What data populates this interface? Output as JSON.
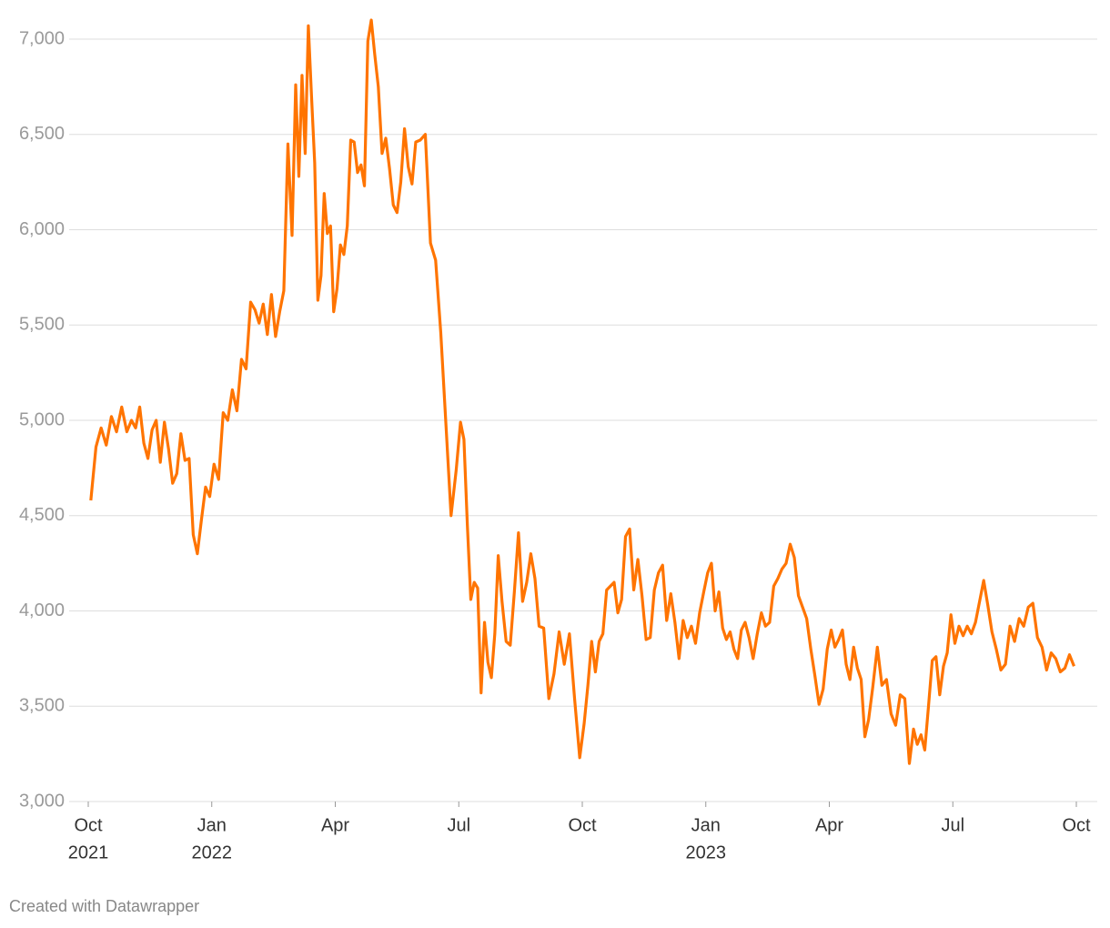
{
  "chart_data": {
    "type": "line",
    "footer": "Created with Datawrapper",
    "color": "#ff7400",
    "grid": true,
    "x": [
      "2021-10",
      "2021-11",
      "2021-12",
      "2022-01",
      "2022-02",
      "2022-03",
      "2022-04",
      "2022-05",
      "2022-06",
      "2022-07",
      "2022-08",
      "2022-09",
      "2022-10",
      "2022-11",
      "2022-12",
      "2023-01",
      "2023-02",
      "2023-03",
      "2023-04",
      "2023-05",
      "2023-06",
      "2023-07",
      "2023-08",
      "2023-09"
    ],
    "values": [
      [
        4580,
        4860,
        4960,
        4870,
        5020,
        4940,
        5070,
        4940
      ],
      [
        5000,
        4960,
        5070,
        4880,
        4800,
        4950,
        5000,
        4780,
        4990,
        4850
      ],
      [
        4670,
        4720,
        4930,
        4790,
        4800,
        4400,
        4300,
        4480,
        4650,
        4600
      ],
      [
        4770,
        4690,
        5040,
        5000,
        5160,
        5050,
        5320,
        5270,
        5620
      ],
      [
        5580,
        5510,
        5610,
        5450,
        5660,
        5440,
        5570,
        5680,
        6450,
        5970
      ],
      [
        6760,
        6280,
        6810,
        6400,
        7070,
        6700,
        6350,
        5630,
        5760,
        6190,
        5980,
        6020,
        5570
      ],
      [
        5690,
        5920,
        5870,
        6020,
        6470,
        6460,
        6300,
        6340,
        6230,
        6990,
        7100,
        6920
      ],
      [
        6750,
        6400,
        6480,
        6320,
        6130,
        6090,
        6250,
        6530,
        6330,
        6240,
        6460
      ],
      [
        6470,
        6500,
        5930,
        5840,
        5460,
        4980,
        4500,
        4740
      ],
      [
        4990,
        4900,
        4450,
        4060,
        4150,
        4120,
        3570,
        3940,
        3730,
        3650,
        3880,
        4290
      ],
      [
        4050,
        3840,
        3820,
        4100,
        4410,
        4050,
        4150,
        4300,
        4170,
        3920
      ],
      [
        3910,
        3540,
        3670,
        3890,
        3720,
        3880,
        3540,
        3230
      ],
      [
        3410,
        3610,
        3840,
        3680,
        3840,
        3880,
        4110,
        4130,
        4150,
        3990,
        4060
      ],
      [
        4390,
        4430,
        4110,
        4270,
        4080,
        3850,
        3860,
        4110,
        4200,
        4240
      ],
      [
        3950,
        4090,
        3940,
        3750,
        3950,
        3860,
        3920,
        3830,
        3990,
        4100
      ],
      [
        4200,
        4250,
        4000,
        4100,
        3910,
        3850,
        3890,
        3800,
        3750,
        3900,
        3940
      ],
      [
        3860,
        3750,
        3880,
        3990,
        3920,
        3940,
        4130,
        4170,
        4220,
        4250
      ],
      [
        4350,
        4280,
        4080,
        4020,
        3960,
        3800,
        3660,
        3510,
        3590,
        3800
      ],
      [
        3900,
        3810,
        3850,
        3900,
        3720,
        3640,
        3810,
        3700,
        3640,
        3340,
        3430
      ],
      [
        3600,
        3810,
        3610,
        3640,
        3460,
        3400,
        3560,
        3540,
        3200
      ],
      [
        3380,
        3300,
        3350,
        3270,
        3500,
        3740,
        3760,
        3560,
        3710,
        3780,
        3980
      ],
      [
        3830,
        3920,
        3870,
        3920,
        3880,
        3940,
        4050,
        4160,
        4030,
        3890
      ],
      [
        3800,
        3690,
        3720,
        3920,
        3840,
        3960,
        3920,
        4020,
        4040
      ],
      [
        3860,
        3810,
        3690,
        3780,
        3750,
        3680,
        3700,
        3770,
        3710
      ]
    ],
    "xlim": [
      "2021-10",
      "2023-10"
    ],
    "xticks": [
      {
        "value": "2021-10",
        "label": "Oct",
        "year": "2021"
      },
      {
        "value": "2022-01",
        "label": "Jan",
        "year": "2022"
      },
      {
        "value": "2022-04",
        "label": "Apr"
      },
      {
        "value": "2022-07",
        "label": "Jul"
      },
      {
        "value": "2022-10",
        "label": "Oct"
      },
      {
        "value": "2023-01",
        "label": "Jan",
        "year": "2023"
      },
      {
        "value": "2023-04",
        "label": "Apr"
      },
      {
        "value": "2023-07",
        "label": "Jul"
      },
      {
        "value": "2023-10",
        "label": "Oct"
      }
    ],
    "ylim": [
      3000,
      7000
    ],
    "yticks": [
      {
        "value": 3000,
        "label": "3,000"
      },
      {
        "value": 3500,
        "label": "3,500"
      },
      {
        "value": 4000,
        "label": "4,000"
      },
      {
        "value": 4500,
        "label": "4,500"
      },
      {
        "value": 5000,
        "label": "5,000"
      },
      {
        "value": 5500,
        "label": "5,500"
      },
      {
        "value": 6000,
        "label": "6,000"
      },
      {
        "value": 6500,
        "label": "6,500"
      },
      {
        "value": 7000,
        "label": "7,000"
      }
    ]
  }
}
